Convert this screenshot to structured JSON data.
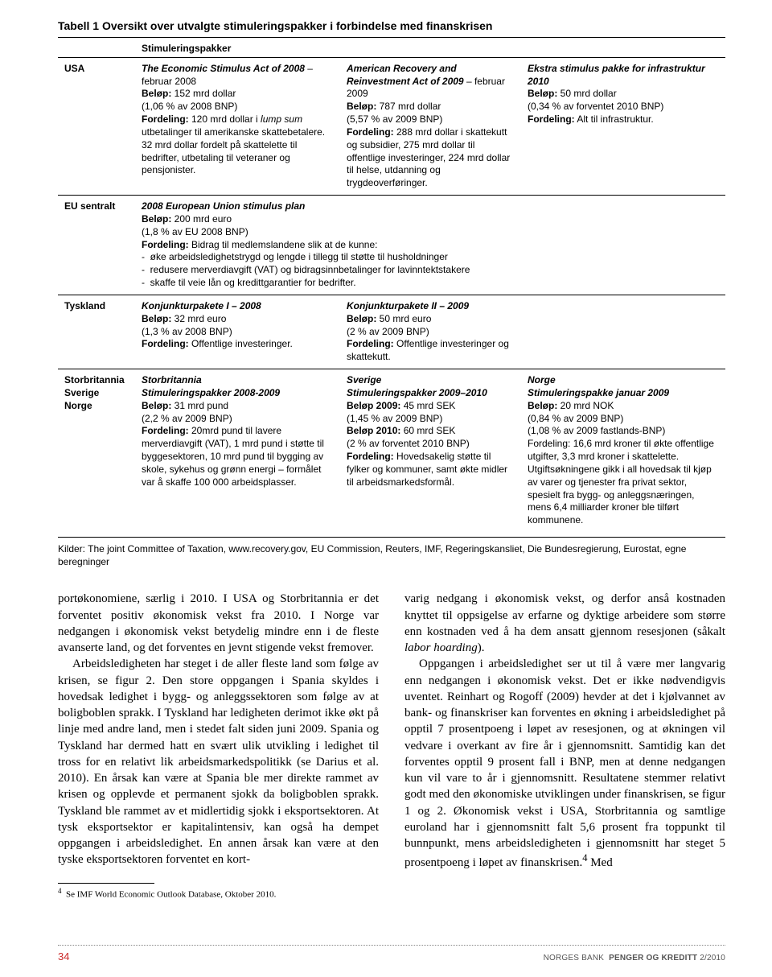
{
  "tableTitleBold": "Tabell 1",
  "tableTitleRest": " Oversikt over utvalgte stimuleringspakker i forbindelse med finanskrisen",
  "sectionHeader": "Stimuleringspakker",
  "rows": {
    "usa": {
      "label": "USA",
      "c1": "<b><i>The Economic Stimulus Act of 2008</i></b> – februar 2008<br><b>Beløp:</b> 152 mrd dollar<br>(1,06 % av 2008 BNP)<br><b>Fordeling:</b> 120 mrd dollar i <i>lump sum</i> utbetalinger til amerikanske skattebetalere. 32 mrd dollar fordelt på skattelette til bedrifter, utbetaling til veteraner og pensjonister.",
      "c2": "<b><i>American Recovery and Reinvestment Act of 2009</i></b> – februar 2009<br><b>Beløp:</b> 787 mrd dollar<br>(5,57 % av 2009 BNP)<br><b>Fordeling:</b> 288 mrd dollar i skattekutt og subsidier, 275 mrd dollar til offentlige investeringer, 224 mrd dollar til helse, utdanning og trygdeoverføringer.",
      "c3": "<b><i>Ekstra stimulus pakke for infrastruktur 2010</i></b><br><b>Beløp:</b> 50 mrd dollar<br>(0,34 % av forventet 2010 BNP)<br><b>Fordeling:</b> Alt til infrastruktur."
    },
    "eu": {
      "label": "EU sentralt",
      "c1": "<b><i>2008 European Union stimulus plan</i></b><br><b>Beløp:</b> 200 mrd euro<br>(1,8 % av EU 2008 BNP)<br><b>Fordeling:</b> Bidrag til medlemslandene slik at de kunne:<br>- &nbsp;øke arbeidsledighetstrygd og lengde i tillegg til støtte til husholdninger<br>- &nbsp;redusere merverdiavgift (VAT) og bidragsinnbetalinger for lavinntektstakere<br>- &nbsp;skaffe til veie lån og kredittgarantier for bedrifter."
    },
    "de": {
      "label": "Tyskland",
      "c1": "<b><i>Konjunkturpakete I – 2008</i></b><br><b>Beløp:</b> 32 mrd euro<br>(1,3 % av 2008 BNP)<br><b>Fordeling:</b> Offentlige investeringer.",
      "c2": "<b><i>Konjunkturpakete II – 2009</i></b><br><b>Beløp:</b> 50 mrd euro<br>(2 % av 2009 BNP)<br><b>Fordeling:</b> Offentlige investeringer og skattekutt."
    },
    "ukSeNo": {
      "label": "Storbritannia<br>Sverige<br>Norge",
      "c1": "<b><i>Storbritannia<br>Stimuleringspakker 2008-2009</i></b><br><b>Beløp:</b> 31 mrd pund<br>(2,2 % av 2009 BNP)<br><b>Fordeling:</b> 20mrd pund til lavere merverdiavgift (VAT), 1 mrd pund i støtte til byggesektoren, 10 mrd pund til bygging av skole, sykehus og grønn energi – formålet var å skaffe 100 000 arbeidsplasser.",
      "c2": "<b><i>Sverige<br>Stimuleringspakker 2009–2010</i></b><br><b>Beløp 2009:</b> 45 mrd SEK<br>(1,45 % av 2009 BNP)<br><b>Beløp 2010:</b> 60 mrd SEK<br>(2 % av forventet 2010 BNP)<br><b>Fordeling:</b> Hovedsakelig støtte til fylker og kommuner, samt økte midler til arbeidsmarkedsformål.",
      "c3": "<b><i>Norge<br>Stimuleringspakke januar 2009</i></b><br><b>Beløp:</b> 20 mrd NOK<br>(0,84 % av 2009 BNP)<br>(1,08 % av 2009 fastlands-BNP)<br>Fordeling: 16,6 mrd kroner til økte offentlige utgifter, 3,3 mrd kroner i skattelette.<br>Utgiftsøkningene gikk i all hovedsak til kjøp av varer og tjenester fra privat sektor, spesielt fra bygg- og anleggsnæringen, mens 6,4 milliarder kroner ble tilført kommunene."
    }
  },
  "sources": "Kilder: The joint Committee of Taxation, www.recovery.gov, EU Commission, Reuters, IMF, Regeringskansliet, Die Bundesregierung, Eurostat, egne beregninger",
  "body": {
    "p1": "portøkonomiene, særlig i 2010. I USA og Storbritannia er det forventet positiv økonomisk vekst fra 2010. I Norge var nedgangen i økonomisk vekst betydelig mindre enn i de fleste avanserte land, og det forventes en jevnt stigende vekst fremover.",
    "p2": "Arbeidsledigheten har steget i de aller fleste land som følge av krisen, se figur 2. Den store oppgangen i Spania skyldes i hovedsak ledighet i bygg- og anleggssektoren som følge av at boligboblen sprakk. I Tyskland har ledigheten derimot ikke økt på linje med andre land, men i stedet falt siden juni 2009. Spania og Tyskland har dermed hatt en svært ulik utvikling i ledighet til tross for en relativt lik arbeidsmarkedspolitikk (se Darius et al. 2010). En årsak kan være at Spania ble mer direkte rammet av krisen og opplevde et permanent sjokk da boligboblen sprakk. Tyskland ble rammet av et midlertidig sjokk i eksportsektoren. At tysk eksportsektor er kapitalintensiv, kan også ha dempet oppgangen i arbeidsledighet. En annen årsak kan være at den tyske eksportsektoren forventet en kort-",
    "p3": "varig nedgang i økonomisk vekst, og derfor anså kostnaden knyttet til oppsigelse av erfarne og dyktige arbeidere som større enn kostnaden ved å ha dem ansatt gjennom resesjonen (såkalt <i>labor hoarding</i>).",
    "p4": "Oppgangen i arbeidsledighet ser ut til å være mer langvarig enn nedgangen i økonomisk vekst. Det er ikke nødvendigvis uventet. Reinhart og Rogoff (2009) hevder at det i kjølvannet av bank- og finanskriser kan forventes en økning i arbeidsledighet på opptil 7 prosentpoeng i løpet av resesjonen, og at økningen vil vedvare i overkant av fire år i gjennomsnitt. Samtidig kan det forventes opptil 9 prosent fall i BNP, men at denne nedgangen kun vil vare to år i gjennomsnitt. Resultatene stemmer relativt godt med den økonomiske utviklingen under finanskrisen, se figur 1 og 2. Økonomisk vekst i USA, Storbritannia og samtlige euroland har i gjennomsnitt falt 5,6 prosent fra toppunkt til bunnpunkt, mens arbeidsledigheten i gjennomsnitt har steget 5 prosentpoeng i løpet av finanskrisen.<sup>4</sup> Med"
  },
  "footnote": "Se IMF World Economic Outlook Database, Oktober 2010.",
  "footer": {
    "page": "34",
    "publisher": "NORGES BANK",
    "series": "PENGER OG KREDITT",
    "issue": "2/2010"
  }
}
